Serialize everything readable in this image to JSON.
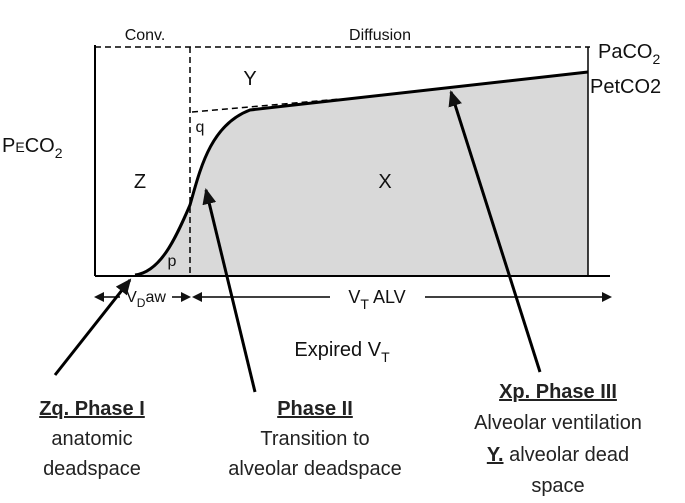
{
  "header": {
    "conv": "Conv.",
    "diffusion": "Diffusion"
  },
  "labels": {
    "paco2": {
      "main": "PaCO",
      "sub": "2"
    },
    "petco2": "PetCO2",
    "peco2": {
      "p": "P",
      "e": "E",
      "co": "CO",
      "sub": "2"
    },
    "y": "Y",
    "q": "q",
    "z": "Z",
    "x": "X",
    "p": "p"
  },
  "axis": {
    "vdaw": {
      "v": "V",
      "sub": "D",
      "rest": "aw"
    },
    "vtalv": {
      "v": "V",
      "sub": "T",
      "rest": " ALV"
    },
    "expired": {
      "main": "Expired V",
      "sub": "T"
    }
  },
  "notes": [
    {
      "title": "Zq. Phase I",
      "lines": [
        "anatomic",
        "deadspace"
      ]
    },
    {
      "title": "Phase II",
      "lines": [
        "Transition to",
        "alveolar deadspace"
      ]
    },
    {
      "title": "Xp. Phase III",
      "line1": "Alveolar ventilation",
      "line2": {
        "u": "Y.",
        "rest": " alveolar dead"
      },
      "line3": "space"
    }
  ]
}
